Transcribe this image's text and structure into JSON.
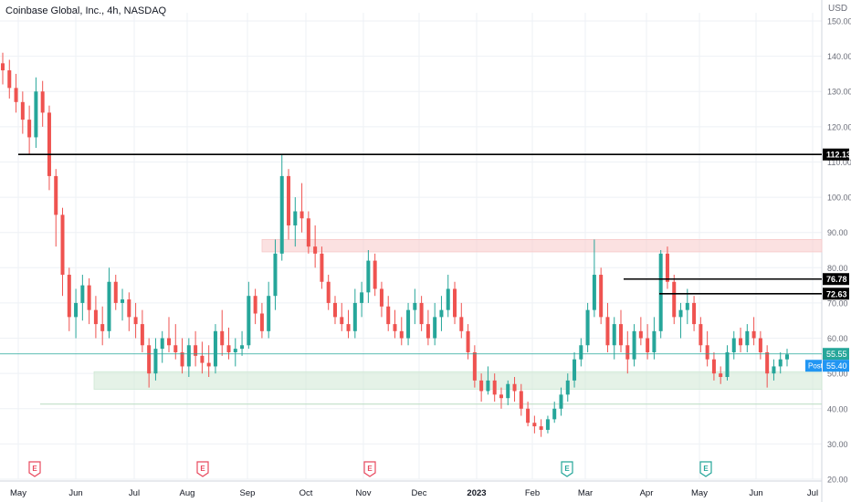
{
  "header": {
    "title": "Coinbase Global, Inc., 4h, NASDAQ",
    "currency": "USD"
  },
  "chart_data": {
    "type": "candlestick",
    "x_tick_labels": [
      "May",
      "Jun",
      "Jul",
      "Aug",
      "Sep",
      "Oct",
      "Nov",
      "Dec",
      "2023",
      "Feb",
      "Mar",
      "Apr",
      "May",
      "Jun",
      "Jul"
    ],
    "y_tick_labels": [
      20,
      30,
      40,
      50,
      60,
      70,
      80,
      90,
      100,
      110,
      120,
      130,
      140,
      150
    ],
    "ylim": [
      20,
      154
    ],
    "series": [
      {
        "values": [
          [
            138,
            141,
            132,
            136
          ],
          [
            136,
            139,
            128,
            131
          ],
          [
            131,
            135,
            124,
            127
          ],
          [
            127,
            130,
            118,
            122
          ],
          [
            122,
            126,
            112,
            117
          ],
          [
            117,
            134,
            114,
            130
          ],
          [
            130,
            133,
            120,
            124
          ],
          [
            124,
            126,
            102,
            106
          ],
          [
            106,
            108,
            86,
            95
          ],
          [
            95,
            97,
            72,
            78
          ],
          [
            78,
            80,
            62,
            66
          ],
          [
            66,
            74,
            60,
            70
          ],
          [
            70,
            78,
            65,
            75
          ],
          [
            75,
            77,
            64,
            68
          ],
          [
            68,
            72,
            60,
            64
          ],
          [
            64,
            69,
            58,
            62
          ],
          [
            62,
            80,
            60,
            76
          ],
          [
            76,
            78,
            68,
            70
          ],
          [
            70,
            74,
            65,
            71
          ],
          [
            71,
            73,
            62,
            66
          ],
          [
            66,
            70,
            60,
            64
          ],
          [
            64,
            68,
            56,
            58
          ],
          [
            58,
            60,
            46,
            50
          ],
          [
            50,
            60,
            48,
            57
          ],
          [
            57,
            62,
            53,
            60
          ],
          [
            60,
            66,
            56,
            58
          ],
          [
            58,
            64,
            54,
            56
          ],
          [
            56,
            60,
            50,
            52
          ],
          [
            52,
            60,
            49,
            58
          ],
          [
            58,
            62,
            52,
            55
          ],
          [
            55,
            59,
            50,
            53
          ],
          [
            53,
            58,
            49,
            52
          ],
          [
            52,
            64,
            50,
            62
          ],
          [
            62,
            68,
            55,
            58
          ],
          [
            58,
            63,
            54,
            56
          ],
          [
            56,
            60,
            52,
            57
          ],
          [
            57,
            62,
            55,
            58
          ],
          [
            58,
            76,
            57,
            72
          ],
          [
            72,
            74,
            64,
            67
          ],
          [
            67,
            70,
            60,
            62
          ],
          [
            62,
            76,
            60,
            72
          ],
          [
            72,
            88,
            68,
            84
          ],
          [
            84,
            112,
            82,
            106
          ],
          [
            106,
            108,
            88,
            92
          ],
          [
            92,
            100,
            86,
            96
          ],
          [
            96,
            104,
            90,
            94
          ],
          [
            94,
            96,
            84,
            86
          ],
          [
            86,
            92,
            80,
            84
          ],
          [
            84,
            86,
            74,
            76
          ],
          [
            76,
            78,
            68,
            70
          ],
          [
            70,
            72,
            64,
            66
          ],
          [
            66,
            70,
            62,
            64
          ],
          [
            64,
            68,
            60,
            62
          ],
          [
            62,
            74,
            60,
            70
          ],
          [
            70,
            76,
            66,
            73
          ],
          [
            73,
            85,
            70,
            82
          ],
          [
            82,
            84,
            72,
            74
          ],
          [
            74,
            76,
            66,
            69
          ],
          [
            69,
            72,
            62,
            64
          ],
          [
            64,
            68,
            60,
            62
          ],
          [
            62,
            66,
            58,
            60
          ],
          [
            60,
            70,
            58,
            68
          ],
          [
            68,
            74,
            64,
            70
          ],
          [
            70,
            72,
            62,
            64
          ],
          [
            64,
            68,
            58,
            60
          ],
          [
            60,
            70,
            58,
            66
          ],
          [
            66,
            72,
            62,
            68
          ],
          [
            68,
            78,
            66,
            74
          ],
          [
            74,
            76,
            64,
            66
          ],
          [
            66,
            70,
            60,
            62
          ],
          [
            62,
            64,
            54,
            56
          ],
          [
            56,
            58,
            46,
            48
          ],
          [
            48,
            50,
            42,
            45
          ],
          [
            45,
            52,
            44,
            48
          ],
          [
            48,
            50,
            42,
            44
          ],
          [
            44,
            46,
            40,
            43
          ],
          [
            43,
            48,
            41,
            47
          ],
          [
            47,
            49,
            42,
            45
          ],
          [
            45,
            47,
            38,
            40
          ],
          [
            40,
            42,
            35,
            36
          ],
          [
            36,
            38,
            33,
            35
          ],
          [
            35,
            37,
            32,
            34
          ],
          [
            34,
            38,
            33,
            37
          ],
          [
            37,
            42,
            36,
            40
          ],
          [
            40,
            46,
            38,
            44
          ],
          [
            44,
            50,
            42,
            48
          ],
          [
            48,
            56,
            46,
            54
          ],
          [
            54,
            60,
            52,
            58
          ],
          [
            58,
            70,
            56,
            68
          ],
          [
            68,
            88,
            66,
            78
          ],
          [
            78,
            80,
            64,
            66
          ],
          [
            66,
            70,
            56,
            58
          ],
          [
            58,
            66,
            54,
            64
          ],
          [
            64,
            68,
            56,
            58
          ],
          [
            58,
            62,
            50,
            54
          ],
          [
            54,
            64,
            52,
            62
          ],
          [
            62,
            66,
            58,
            60
          ],
          [
            60,
            64,
            54,
            56
          ],
          [
            56,
            66,
            54,
            62
          ],
          [
            62,
            85,
            60,
            84
          ],
          [
            84,
            86,
            74,
            76
          ],
          [
            76,
            78,
            64,
            66
          ],
          [
            66,
            70,
            60,
            68
          ],
          [
            68,
            74,
            64,
            70
          ],
          [
            70,
            72,
            62,
            64
          ],
          [
            64,
            66,
            56,
            58
          ],
          [
            58,
            62,
            52,
            54
          ],
          [
            54,
            56,
            48,
            50
          ],
          [
            50,
            52,
            47,
            49
          ],
          [
            49,
            58,
            48,
            56
          ],
          [
            56,
            62,
            54,
            60
          ],
          [
            60,
            63,
            56,
            58
          ],
          [
            58,
            64,
            56,
            62
          ],
          [
            62,
            66,
            58,
            60
          ],
          [
            60,
            62,
            54,
            56
          ],
          [
            56,
            58,
            46,
            50
          ],
          [
            50,
            54,
            48,
            52
          ],
          [
            52,
            56,
            50,
            54
          ],
          [
            54,
            57,
            52,
            55.4
          ]
        ]
      }
    ],
    "levels": [
      {
        "label": "112.13",
        "price": 112.13
      },
      {
        "label": "76.78",
        "price": 76.78
      },
      {
        "label": "72.63",
        "price": 72.63
      }
    ],
    "last_price": {
      "label": "55.55",
      "price": 55.55
    },
    "post_price": {
      "tag": "Post",
      "label": "55.40",
      "price": 55.4
    },
    "zones": [
      {
        "low": 84.5,
        "high": 88,
        "color": "#f7c8c8"
      },
      {
        "low": 45.5,
        "high": 50.5,
        "color": "#cfe8d4"
      }
    ],
    "earnings_markers": [
      {
        "label": "E",
        "color": "#e84a5f"
      },
      {
        "label": "E",
        "color": "#e84a5f"
      },
      {
        "label": "E",
        "color": "#e84a5f"
      },
      {
        "label": "E",
        "color": "#26a69a"
      },
      {
        "label": "E",
        "color": "#26a69a"
      }
    ],
    "colors": {
      "up": "#26a69a",
      "down": "#ef5350",
      "level": "#000000",
      "last": "#26a69a",
      "post": "#2196f3",
      "grid": "#eef1f5"
    },
    "grid": true
  }
}
